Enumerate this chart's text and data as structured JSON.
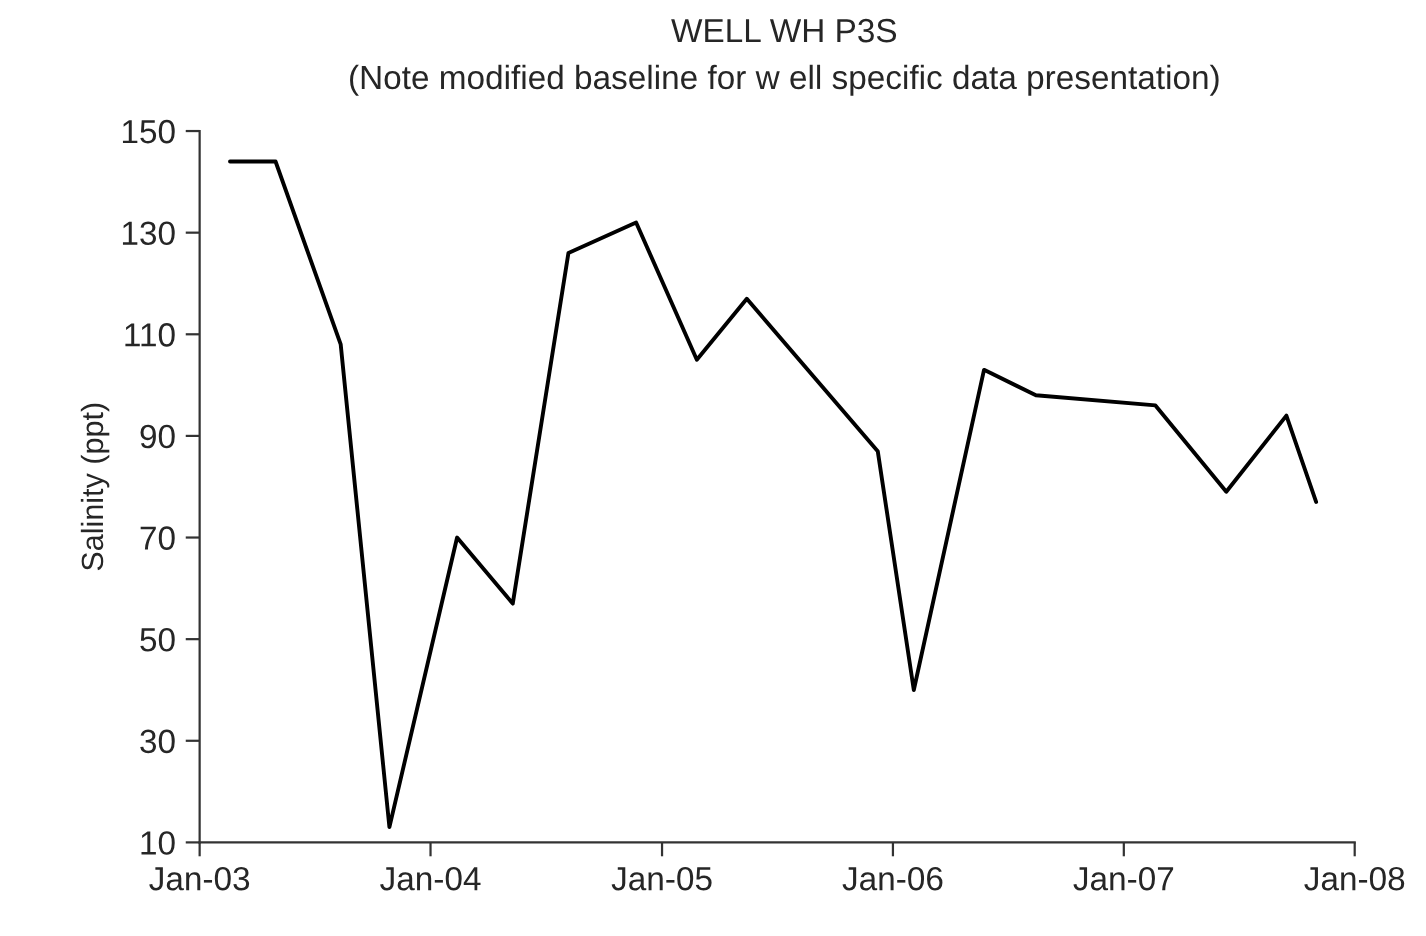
{
  "chart_data": {
    "type": "line",
    "title": "WELL WH P3S",
    "subtitle": "(Note modified baseline for w ell specific data presentation)",
    "ylabel": "Salinity (ppt)",
    "x": [
      "2003-02-18",
      "2003-05-01",
      "2003-08-12",
      "2003-10-28",
      "2004-02-12",
      "2004-05-10",
      "2004-08-06",
      "2004-11-21",
      "2005-02-25",
      "2005-05-15",
      "2005-12-08",
      "2006-02-03",
      "2006-05-25",
      "2006-08-15",
      "2007-02-20",
      "2007-06-12",
      "2007-09-15",
      "2007-11-01"
    ],
    "series": [
      {
        "color": "#000000",
        "values": [
          144,
          144,
          108,
          13,
          70,
          57,
          126,
          132,
          105,
          117,
          87,
          40,
          103,
          98,
          96,
          79,
          94,
          77
        ]
      }
    ],
    "xlim": [
      "2003-01-01",
      "2008-01-01"
    ],
    "xticks": [
      {
        "value": "2003-01-01",
        "label": "Jan-03"
      },
      {
        "value": "2004-01-01",
        "label": "Jan-04"
      },
      {
        "value": "2005-01-01",
        "label": "Jan-05"
      },
      {
        "value": "2006-01-01",
        "label": "Jan-06"
      },
      {
        "value": "2007-01-01",
        "label": "Jan-07"
      },
      {
        "value": "2008-01-01",
        "label": "Jan-08"
      }
    ],
    "ylim": [
      10,
      150
    ],
    "yticks": [
      10,
      30,
      50,
      70,
      90,
      110,
      130,
      150
    ],
    "grid": false,
    "legend": false,
    "marker": "none",
    "line_style": "solid"
  }
}
